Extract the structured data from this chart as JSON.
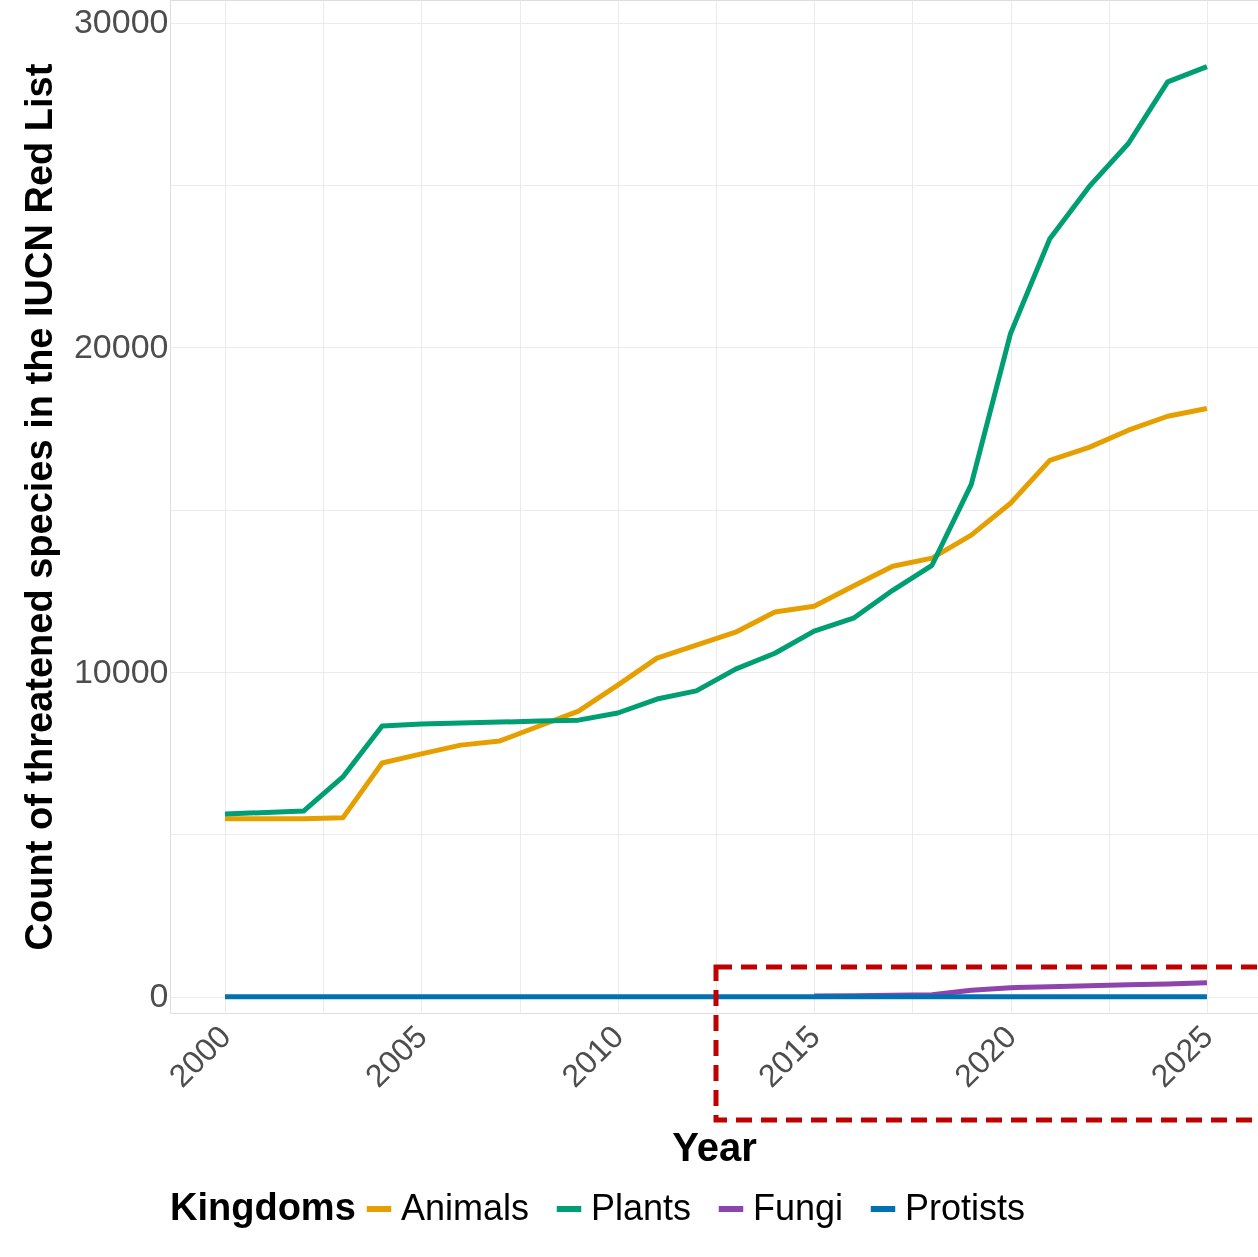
{
  "chart_data": {
    "type": "line",
    "xlabel": "Year",
    "ylabel": "Count of threatened species in the IUCN Red List",
    "legend_title": "Kingdoms",
    "x": [
      2000,
      2002,
      2003,
      2004,
      2005,
      2006,
      2007,
      2008,
      2009,
      2010,
      2011,
      2012,
      2013,
      2014,
      2015,
      2016,
      2017,
      2018,
      2019,
      2020,
      2021,
      2022,
      2023,
      2024,
      2025
    ],
    "series": [
      {
        "name": "Animals",
        "color": "#e69f00",
        "values": [
          5480,
          5480,
          5510,
          7200,
          7480,
          7750,
          7880,
          8340,
          8800,
          9600,
          10430,
          10830,
          11230,
          11850,
          12030,
          12650,
          13260,
          13510,
          14220,
          15200,
          16520,
          16920,
          17450,
          17880,
          18120
        ]
      },
      {
        "name": "Plants",
        "color": "#009e73",
        "values": [
          5630,
          5720,
          6770,
          8340,
          8400,
          8430,
          8460,
          8490,
          8520,
          8740,
          9170,
          9420,
          10090,
          10580,
          11260,
          11660,
          12520,
          13290,
          15780,
          20430,
          23350,
          24950,
          26280,
          28180,
          28650
        ]
      },
      {
        "name": "Fungi",
        "color": "#8e44ad",
        "values": [
          null,
          null,
          null,
          null,
          null,
          null,
          null,
          null,
          null,
          null,
          null,
          null,
          null,
          null,
          20,
          30,
          50,
          60,
          200,
          280,
          310,
          340,
          370,
          390,
          430
        ]
      },
      {
        "name": "Protists",
        "color": "#0072b2",
        "values": [
          0,
          0,
          0,
          0,
          0,
          0,
          0,
          0,
          0,
          0,
          0,
          0,
          0,
          0,
          0,
          0,
          0,
          0,
          0,
          0,
          0,
          0,
          0,
          0,
          0
        ]
      }
    ],
    "xlim": [
      1998.6,
      2026.3
    ],
    "ylim": [
      -500,
      30700
    ],
    "xticks": [
      2000,
      {
        "value": 2002.5,
        "label": null
      },
      2005,
      {
        "value": 2007.5,
        "label": null
      },
      2010,
      {
        "value": 2012.5,
        "label": null
      },
      2015,
      {
        "value": 2017.5,
        "label": null
      },
      2020,
      {
        "value": 2022.5,
        "label": null
      },
      2025
    ],
    "yticks": [
      0,
      {
        "value": 5000,
        "label": null
      },
      10000,
      {
        "value": 15000,
        "label": null
      },
      20000,
      {
        "value": 25000,
        "label": null
      },
      30000
    ],
    "grid": true,
    "legend": "bottom",
    "line_style": "solid",
    "marker": "none"
  }
}
